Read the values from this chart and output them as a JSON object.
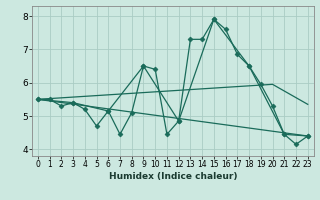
{
  "title": "",
  "xlabel": "Humidex (Indice chaleur)",
  "bg_color": "#cce8e0",
  "grid_color": "#aaccC4",
  "line_color": "#1a6b5a",
  "xlim": [
    -0.5,
    23.5
  ],
  "ylim": [
    3.8,
    8.3
  ],
  "xticks": [
    0,
    1,
    2,
    3,
    4,
    5,
    6,
    7,
    8,
    9,
    10,
    11,
    12,
    13,
    14,
    15,
    16,
    17,
    18,
    19,
    20,
    21,
    22,
    23
  ],
  "yticks": [
    4,
    5,
    6,
    7,
    8
  ],
  "series": [
    {
      "x": [
        0,
        1,
        2,
        3,
        4,
        5,
        6,
        7,
        8,
        9,
        10,
        11,
        12,
        13,
        14,
        15,
        16,
        17,
        18,
        19,
        20,
        21,
        22,
        23
      ],
      "y": [
        5.5,
        5.5,
        5.3,
        5.4,
        5.2,
        4.7,
        5.15,
        4.45,
        5.1,
        6.5,
        6.4,
        4.45,
        4.85,
        7.3,
        7.3,
        7.9,
        7.6,
        6.85,
        6.5,
        5.95,
        5.3,
        4.45,
        4.15,
        4.4
      ],
      "marker": true
    },
    {
      "x": [
        0,
        3,
        6,
        9,
        12,
        15,
        18,
        21,
        23
      ],
      "y": [
        5.5,
        5.4,
        5.15,
        6.5,
        4.85,
        7.9,
        6.5,
        4.45,
        4.4
      ],
      "marker": true
    },
    {
      "x": [
        0,
        23
      ],
      "y": [
        5.5,
        4.4
      ],
      "marker": false
    },
    {
      "x": [
        0,
        20,
        23
      ],
      "y": [
        5.5,
        5.95,
        5.35
      ],
      "marker": false
    }
  ]
}
